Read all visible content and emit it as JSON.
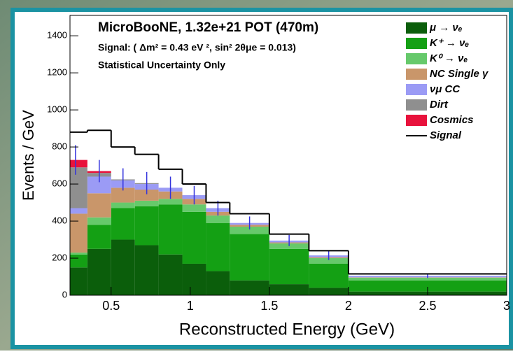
{
  "chart_data": {
    "type": "stacked_histogram",
    "title": "MicroBooNE, 1.32e+21 POT (470m)",
    "subtitle": "Signal: ( Δm² = 0.43 eV ², sin² 2θμe = 0.013)",
    "annotation": "Statistical Uncertainty Only",
    "x_label": "Reconstructed Energy (GeV)",
    "y_label": "Events / GeV",
    "bins": [
      0.2,
      0.35,
      0.5,
      0.65,
      0.8,
      0.95,
      1.1,
      1.25,
      1.5,
      1.75,
      2.0,
      3.0
    ],
    "series": [
      {
        "name": "μ → νₑ",
        "color": "#0b5e0b",
        "values": [
          150,
          250,
          300,
          270,
          220,
          170,
          130,
          80,
          60,
          40,
          20
        ]
      },
      {
        "name": "K⁺ → νₑ",
        "color": "#14a014",
        "values": [
          70,
          130,
          170,
          210,
          270,
          280,
          260,
          250,
          190,
          130,
          60
        ]
      },
      {
        "name": "K⁰ → νₑ",
        "color": "#66c96b",
        "values": [
          10,
          40,
          30,
          30,
          30,
          40,
          40,
          40,
          30,
          30,
          15
        ]
      },
      {
        "name": "NC Single γ",
        "color": "#c9966a",
        "values": [
          210,
          130,
          80,
          60,
          40,
          30,
          20,
          10,
          5,
          5,
          2
        ]
      },
      {
        "name": "νμ CC",
        "color": "#9b9bf5",
        "values": [
          30,
          90,
          40,
          30,
          20,
          20,
          20,
          10,
          10,
          10,
          8
        ]
      },
      {
        "name": "Dirt",
        "color": "#8f8f8f",
        "values": [
          220,
          20,
          5,
          5,
          0,
          0,
          0,
          0,
          0,
          0,
          0
        ]
      },
      {
        "name": "Cosmics",
        "color": "#e8123c",
        "values": [
          40,
          10,
          0,
          0,
          0,
          0,
          0,
          0,
          0,
          0,
          0
        ]
      }
    ],
    "errors": [
      80,
      60,
      60,
      60,
      60,
      50,
      40,
      35,
      30,
      25,
      12
    ],
    "error_color": "#3333dd",
    "signal": {
      "name": "Signal",
      "color": "#000000",
      "values": [
        880,
        890,
        800,
        760,
        680,
        600,
        500,
        440,
        330,
        240,
        115
      ]
    },
    "xlim": [
      0.24,
      3
    ],
    "ylim": [
      0,
      1510
    ],
    "xticks": [
      0.5,
      1,
      1.5,
      2,
      2.5,
      3
    ],
    "yticks": [
      0,
      200,
      400,
      600,
      800,
      1000,
      1200,
      1400
    ]
  }
}
